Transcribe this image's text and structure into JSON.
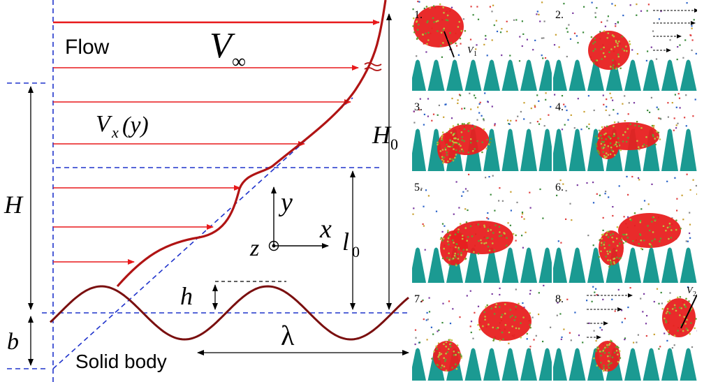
{
  "diagram": {
    "labels": {
      "flow": "Flow",
      "v_inf_main": "V",
      "v_inf_sub": "∞",
      "vx_main": "V",
      "vx_sub": "x",
      "vx_arg": "(y)",
      "H": "H",
      "H0_main": "H",
      "H0_sub": "0",
      "l0_main": "l",
      "l0_sub": "0",
      "h": "h",
      "b": "b",
      "lambda": "λ",
      "x_axis": "x",
      "y_axis": "y",
      "z_axis": "z",
      "solid_body": "Solid body"
    },
    "colors": {
      "velocity_arrows": "#e8191b",
      "profile_curve": "#b01414",
      "wall_wave": "#7a0f0f",
      "dashed_guides": "#1f33cc",
      "particles_red": "#e82020",
      "teeth": "#1b9a92"
    }
  },
  "panels": [
    {
      "number": "1.",
      "vector_label": "V",
      "vector_sub": "1"
    },
    {
      "number": "2.",
      "vector_label": "",
      "vector_sub": ""
    },
    {
      "number": "3.",
      "vector_label": "",
      "vector_sub": ""
    },
    {
      "number": "4.",
      "vector_label": "",
      "vector_sub": ""
    },
    {
      "number": "5.",
      "vector_label": "",
      "vector_sub": ""
    },
    {
      "number": "6.",
      "vector_label": "",
      "vector_sub": ""
    },
    {
      "number": "7.",
      "vector_label": "",
      "vector_sub": ""
    },
    {
      "number": "8.",
      "vector_label": "V",
      "vector_sub": "2"
    }
  ]
}
